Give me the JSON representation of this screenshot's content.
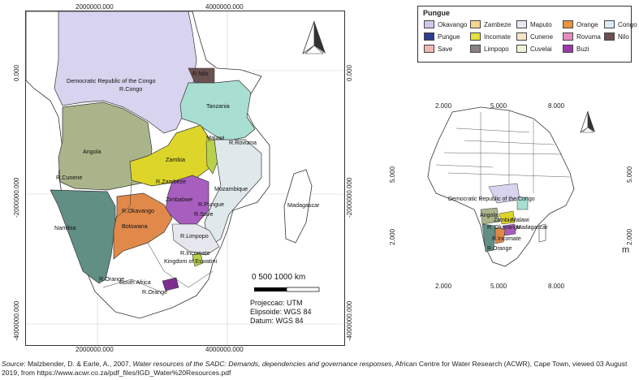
{
  "main_map": {
    "top_ticks": [
      "2000000.000",
      "4000000.000"
    ],
    "bottom_ticks": [
      "2000000.000",
      "4000000.000"
    ],
    "left_ticks": [
      "0.000",
      "-2000000.000",
      "-4000000.000"
    ],
    "right_ticks": [
      "0.000",
      "-2000000.000",
      "-4000000.000"
    ],
    "labels": {
      "drc": "Democratic Republic of the Congo",
      "r_congo": "R.Congo",
      "r_nilo": "R.Nilo",
      "tanzania": "Tanzania",
      "angola": "Angola",
      "r_rovuma": "R.Rovuma",
      "zambia": "Zambia",
      "malawi": "Malawi",
      "r_cunene": "R.Cunene",
      "r_zambeze": "R.Zambeze",
      "mozambique": "Mozambique",
      "zimbabwe": "Zimbabwe",
      "r_pungue": "R.Pungue",
      "r_okavango": "R.Okavango",
      "r_save": "R.Save",
      "madagascar": "Madagascar",
      "namibia": "Namibia",
      "botswana": "Botswana",
      "r_limpopo": "R.Limpopo",
      "r_incomate": "R.Incomate",
      "eswatini": "Kingdom of Eswatini",
      "r_orange": "R.Orange",
      "south_africa": "South Africa",
      "r_orange2": "R.Orange"
    },
    "scale_label": "0    500 1000 km",
    "projection": "Projeccao: UTM",
    "ellipsoid": "Elipsoide: WGS 84",
    "datum": "Datum: WGS 84"
  },
  "legend": {
    "title": "Pungue",
    "items": [
      {
        "label": "Okavango",
        "color": "#d4c6ea"
      },
      {
        "label": "Zambeze",
        "color": "#f4d68f"
      },
      {
        "label": "Maputo",
        "color": "#e9e6f4"
      },
      {
        "label": "Orange",
        "color": "#e69440"
      },
      {
        "label": "Congo",
        "color": "#d8ecf6"
      },
      {
        "label": "Pungue",
        "color": "#2e3c8c"
      },
      {
        "label": "Incomate",
        "color": "#e1e23a"
      },
      {
        "label": "Cunene",
        "color": "#f6e4c6"
      },
      {
        "label": "Rovuma",
        "color": "#e78cc2"
      },
      {
        "label": "Nilo",
        "color": "#6b5150"
      },
      {
        "label": "Save",
        "color": "#f0b8b2"
      },
      {
        "label": "Limpopo",
        "color": "#8a8280"
      },
      {
        "label": "Cuvelai",
        "color": "#eef3d6"
      },
      {
        "label": "Buzi",
        "color": "#9b3aa8"
      }
    ]
  },
  "inset": {
    "top_ticks": [
      "2.000",
      "5.000",
      "8.000"
    ],
    "bottom_ticks": [
      "2.000",
      "5.000",
      "8.000"
    ],
    "left_ticks": [
      "5.000",
      "2.000"
    ],
    "right_ticks": [
      "5.000",
      "2.000"
    ],
    "right_clip": "m",
    "labels": {
      "drc": "Democratic Republic of the Congo",
      "angola": "Angola",
      "zambia": "Zambia",
      "malawi": "Malawi",
      "r_okavango": "R. Okavango",
      "madagascar": "Madagascar",
      "r_incomate": "R.Incomate",
      "r_orange": "R.Orange"
    }
  },
  "source": {
    "prefix": "Source",
    "authors": ": Malzbender, D. & Earle, A., 2007, ",
    "title": "Water resources of the SADC: Demands, dependencies and governance responses",
    "rest": ", African Centre for Water Research (ACWR), Cape Town, viewed 03 August 2019, from https://www.acwr.co.za/pdf_files/IGD_Water%20Resources.pdf"
  }
}
